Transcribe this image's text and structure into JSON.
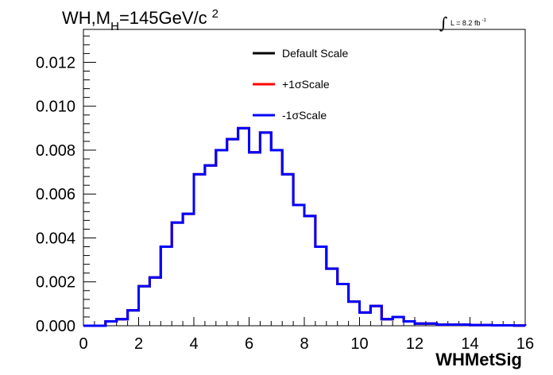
{
  "chart_data": {
    "type": "line",
    "title": {
      "main": "WH,M",
      "sub": "H",
      "rest": "=145GeV/c",
      "sup": "2"
    },
    "lumi": {
      "integral": "∫",
      "text": "L = 8.2 fb",
      "sup": "-1"
    },
    "xlabel": "WHMetSig",
    "ylabel": "",
    "xlim": [
      0,
      16
    ],
    "ylim": [
      0,
      0.0135
    ],
    "xticks": [
      "0",
      "2",
      "4",
      "6",
      "8",
      "10",
      "12",
      "14",
      "16"
    ],
    "yticks": [
      "0.000",
      "0.002",
      "0.004",
      "0.006",
      "0.008",
      "0.010",
      "0.012"
    ],
    "bin_width": 0.4,
    "bin_edges_start": 0,
    "grid": false,
    "legend_position": "top-center",
    "series": [
      {
        "name": "Default Scale",
        "color": "#000000",
        "values": [
          0,
          0,
          0.0002,
          0.0003,
          0.0007,
          0.0018,
          0.0022,
          0.0036,
          0.0047,
          0.0051,
          0.0069,
          0.0073,
          0.008,
          0.0085,
          0.009,
          0.0079,
          0.0088,
          0.008,
          0.0069,
          0.0055,
          0.005,
          0.0036,
          0.0026,
          0.0019,
          0.0011,
          0.0006,
          0.0009,
          0.0003,
          0.0004,
          0.0002,
          0.0001,
          0.0001,
          5e-05,
          5e-05,
          5e-05,
          3e-05,
          3e-05,
          2e-05,
          2e-05,
          1e-05
        ]
      },
      {
        "name": "+1σScale",
        "color": "#ff0000",
        "values": [
          0,
          0,
          0.0002,
          0.0003,
          0.0007,
          0.0018,
          0.0022,
          0.0036,
          0.0047,
          0.0051,
          0.0069,
          0.0073,
          0.008,
          0.0085,
          0.009,
          0.0079,
          0.0088,
          0.008,
          0.0069,
          0.0055,
          0.005,
          0.0036,
          0.0026,
          0.0019,
          0.0011,
          0.0006,
          0.0009,
          0.0003,
          0.0004,
          0.0002,
          0.0001,
          0.0001,
          5e-05,
          5e-05,
          5e-05,
          3e-05,
          3e-05,
          2e-05,
          2e-05,
          1e-05
        ]
      },
      {
        "name": "-1σScale",
        "color": "#0000ff",
        "values": [
          0,
          0,
          0.0002,
          0.0003,
          0.0007,
          0.0018,
          0.0022,
          0.0036,
          0.0047,
          0.0051,
          0.0069,
          0.0073,
          0.008,
          0.0085,
          0.009,
          0.0079,
          0.0088,
          0.008,
          0.0069,
          0.0055,
          0.005,
          0.0036,
          0.0026,
          0.0019,
          0.0011,
          0.0006,
          0.0009,
          0.0003,
          0.0004,
          0.0002,
          0.0001,
          0.0001,
          5e-05,
          5e-05,
          5e-05,
          3e-05,
          3e-05,
          2e-05,
          2e-05,
          1e-05
        ]
      }
    ]
  }
}
